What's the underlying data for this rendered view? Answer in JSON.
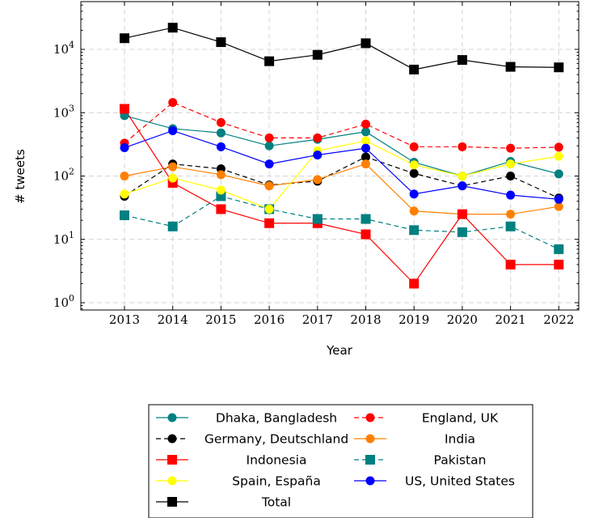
{
  "chart_data": {
    "type": "line",
    "xlabel": "Year",
    "ylabel": "# tweets",
    "y_scale": "log",
    "ylim": [
      0.7,
      60000
    ],
    "grid": true,
    "legend_position": "bottom",
    "categories": [
      "2013",
      "2014",
      "2015",
      "2016",
      "2017",
      "2018",
      "2019",
      "2020",
      "2021",
      "2022"
    ],
    "y_ticks": [
      {
        "base": "10",
        "exp": "0"
      },
      {
        "base": "10",
        "exp": "1"
      },
      {
        "base": "10",
        "exp": "2"
      },
      {
        "base": "10",
        "exp": "3"
      },
      {
        "base": "10",
        "exp": "4"
      }
    ],
    "series": [
      {
        "name": "Dhaka, Bangladesh",
        "color": "#008080",
        "marker": "circle",
        "dash": false,
        "values": [
          900,
          560,
          480,
          300,
          380,
          500,
          165,
          100,
          170,
          108
        ]
      },
      {
        "name": "England, UK",
        "color": "#ff0000",
        "marker": "circle",
        "dash": true,
        "values": [
          330,
          1450,
          700,
          400,
          400,
          660,
          290,
          290,
          275,
          285
        ]
      },
      {
        "name": "Germany, Deutschland",
        "color": "#000000",
        "marker": "circle",
        "dash": true,
        "values": [
          48,
          155,
          130,
          72,
          83,
          200,
          110,
          70,
          100,
          45
        ]
      },
      {
        "name": "India",
        "color": "#ff8000",
        "marker": "circle",
        "dash": false,
        "values": [
          100,
          140,
          105,
          70,
          88,
          155,
          28,
          25,
          25,
          33
        ]
      },
      {
        "name": "Indonesia",
        "color": "#ff0000",
        "marker": "square",
        "dash": false,
        "values": [
          1150,
          78,
          30,
          18,
          18,
          12,
          2,
          25,
          4,
          4
        ]
      },
      {
        "name": "Pakistan",
        "color": "#008080",
        "marker": "square",
        "dash": true,
        "values": [
          24,
          16,
          48,
          30,
          21,
          21,
          14,
          13,
          16,
          7
        ]
      },
      {
        "name": "Spain, España",
        "color": "#ffff00",
        "marker": "circle",
        "dash": false,
        "values": [
          52,
          93,
          60,
          30,
          250,
          360,
          150,
          100,
          155,
          205
        ]
      },
      {
        "name": "US, United States",
        "color": "#0000ff",
        "marker": "circle",
        "dash": false,
        "values": [
          280,
          520,
          290,
          155,
          215,
          275,
          52,
          70,
          50,
          43
        ]
      },
      {
        "name": "Total",
        "color": "#000000",
        "marker": "square",
        "dash": false,
        "values": [
          15000,
          22000,
          13000,
          6500,
          8200,
          12500,
          4800,
          6800,
          5300,
          5200
        ]
      }
    ]
  }
}
